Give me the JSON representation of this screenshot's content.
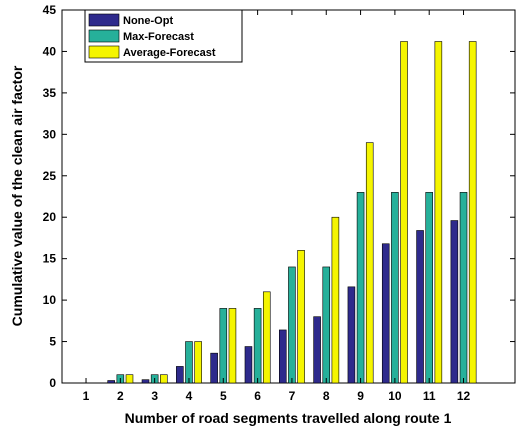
{
  "chart_data": {
    "type": "bar",
    "xlabel": "Number of road segments travelled along route 1",
    "ylabel": "Cumulative value of the clean air factor",
    "categories": [
      "1",
      "2",
      "3",
      "4",
      "5",
      "6",
      "7",
      "8",
      "9",
      "10",
      "11",
      "12"
    ],
    "xlim": [
      0.3,
      13.5
    ],
    "ylim": [
      0,
      45
    ],
    "yticks": [
      "0",
      "5",
      "10",
      "15",
      "20",
      "25",
      "30",
      "35",
      "40",
      "45"
    ],
    "grid": false,
    "legend_position": "top-left",
    "series": [
      {
        "name": "None-Opt",
        "color": "#2e2a8c",
        "values": [
          0,
          0.3,
          0.4,
          2,
          3.6,
          4.4,
          6.4,
          8,
          11.6,
          16.8,
          18.4,
          19.6
        ]
      },
      {
        "name": "Max-Forecast",
        "color": "#26b09a",
        "values": [
          0,
          1,
          1,
          5,
          9,
          9,
          14,
          14,
          23,
          23,
          23,
          23
        ]
      },
      {
        "name": "Average-Forecast",
        "color": "#f5f500",
        "values": [
          0,
          1,
          1,
          5,
          9,
          11,
          16,
          20,
          29,
          41.2,
          41.2,
          41.2
        ]
      }
    ]
  }
}
